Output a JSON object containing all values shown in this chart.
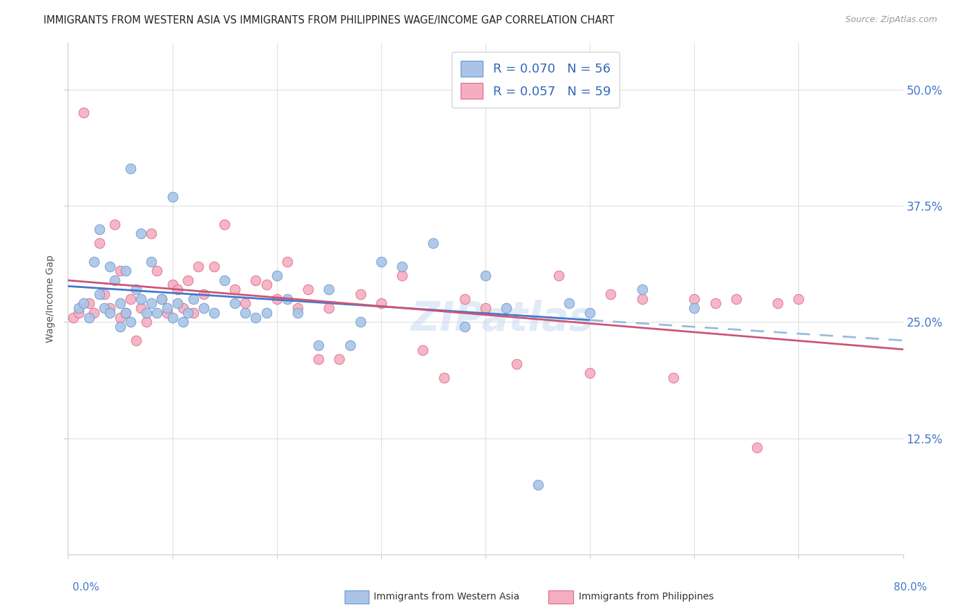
{
  "title": "IMMIGRANTS FROM WESTERN ASIA VS IMMIGRANTS FROM PHILIPPINES WAGE/INCOME GAP CORRELATION CHART",
  "source": "Source: ZipAtlas.com",
  "ylabel": "Wage/Income Gap",
  "ytick_vals": [
    12.5,
    25.0,
    37.5,
    50.0
  ],
  "ytick_labels": [
    "12.5%",
    "25.0%",
    "37.5%",
    "50.0%"
  ],
  "r_western": 0.07,
  "n_western": 56,
  "r_philippines": 0.057,
  "n_philippines": 59,
  "color_western": "#aac4e8",
  "color_philippines": "#f5aec0",
  "edge_western": "#6699cc",
  "edge_philippines": "#dd6688",
  "trendline_western_solid": "#4477cc",
  "trendline_western_dashed": "#99bbdd",
  "trendline_philippines": "#cc5577",
  "western_asia_x": [
    1.0,
    1.5,
    2.0,
    2.5,
    3.0,
    3.0,
    3.5,
    4.0,
    4.0,
    4.5,
    5.0,
    5.0,
    5.5,
    5.5,
    6.0,
    6.0,
    6.5,
    7.0,
    7.0,
    7.5,
    8.0,
    8.0,
    8.5,
    9.0,
    9.5,
    10.0,
    10.0,
    10.5,
    11.0,
    11.5,
    12.0,
    13.0,
    14.0,
    15.0,
    16.0,
    17.0,
    18.0,
    19.0,
    20.0,
    21.0,
    22.0,
    24.0,
    25.0,
    27.0,
    28.0,
    30.0,
    32.0,
    35.0,
    38.0,
    40.0,
    42.0,
    45.0,
    48.0,
    50.0,
    55.0,
    60.0
  ],
  "western_asia_y": [
    26.5,
    27.0,
    25.5,
    31.5,
    28.0,
    35.0,
    26.5,
    31.0,
    26.0,
    29.5,
    27.0,
    24.5,
    30.5,
    26.0,
    41.5,
    25.0,
    28.5,
    34.5,
    27.5,
    26.0,
    31.5,
    27.0,
    26.0,
    27.5,
    26.5,
    38.5,
    25.5,
    27.0,
    25.0,
    26.0,
    27.5,
    26.5,
    26.0,
    29.5,
    27.0,
    26.0,
    25.5,
    26.0,
    30.0,
    27.5,
    26.0,
    22.5,
    28.5,
    22.5,
    25.0,
    31.5,
    31.0,
    33.5,
    24.5,
    30.0,
    26.5,
    7.5,
    27.0,
    26.0,
    28.5,
    26.5
  ],
  "philippines_x": [
    0.5,
    1.0,
    1.5,
    2.0,
    2.5,
    3.0,
    3.5,
    4.0,
    4.5,
    5.0,
    5.0,
    5.5,
    6.0,
    6.5,
    7.0,
    7.5,
    8.0,
    8.5,
    9.0,
    9.5,
    10.0,
    10.5,
    11.0,
    11.5,
    12.0,
    12.5,
    13.0,
    14.0,
    15.0,
    16.0,
    17.0,
    18.0,
    19.0,
    20.0,
    21.0,
    22.0,
    23.0,
    24.0,
    25.0,
    26.0,
    28.0,
    30.0,
    32.0,
    34.0,
    36.0,
    38.0,
    40.0,
    43.0,
    47.0,
    50.0,
    52.0,
    55.0,
    58.0,
    60.0,
    62.0,
    64.0,
    66.0,
    68.0,
    70.0
  ],
  "philippines_y": [
    25.5,
    26.0,
    47.5,
    27.0,
    26.0,
    33.5,
    28.0,
    26.5,
    35.5,
    30.5,
    25.5,
    26.0,
    27.5,
    23.0,
    26.5,
    25.0,
    34.5,
    30.5,
    27.5,
    26.0,
    29.0,
    28.5,
    26.5,
    29.5,
    26.0,
    31.0,
    28.0,
    31.0,
    35.5,
    28.5,
    27.0,
    29.5,
    29.0,
    27.5,
    31.5,
    26.5,
    28.5,
    21.0,
    26.5,
    21.0,
    28.0,
    27.0,
    30.0,
    22.0,
    19.0,
    27.5,
    26.5,
    20.5,
    30.0,
    19.5,
    28.0,
    27.5,
    19.0,
    27.5,
    27.0,
    27.5,
    11.5,
    27.0,
    27.5
  ],
  "xlim": [
    0,
    80
  ],
  "ylim": [
    0,
    55
  ],
  "xtick_positions": [
    0,
    10,
    20,
    30,
    40,
    50,
    60,
    70,
    80
  ],
  "solid_x_end": 50,
  "background_color": "#ffffff",
  "grid_color": "#e0e0e0"
}
